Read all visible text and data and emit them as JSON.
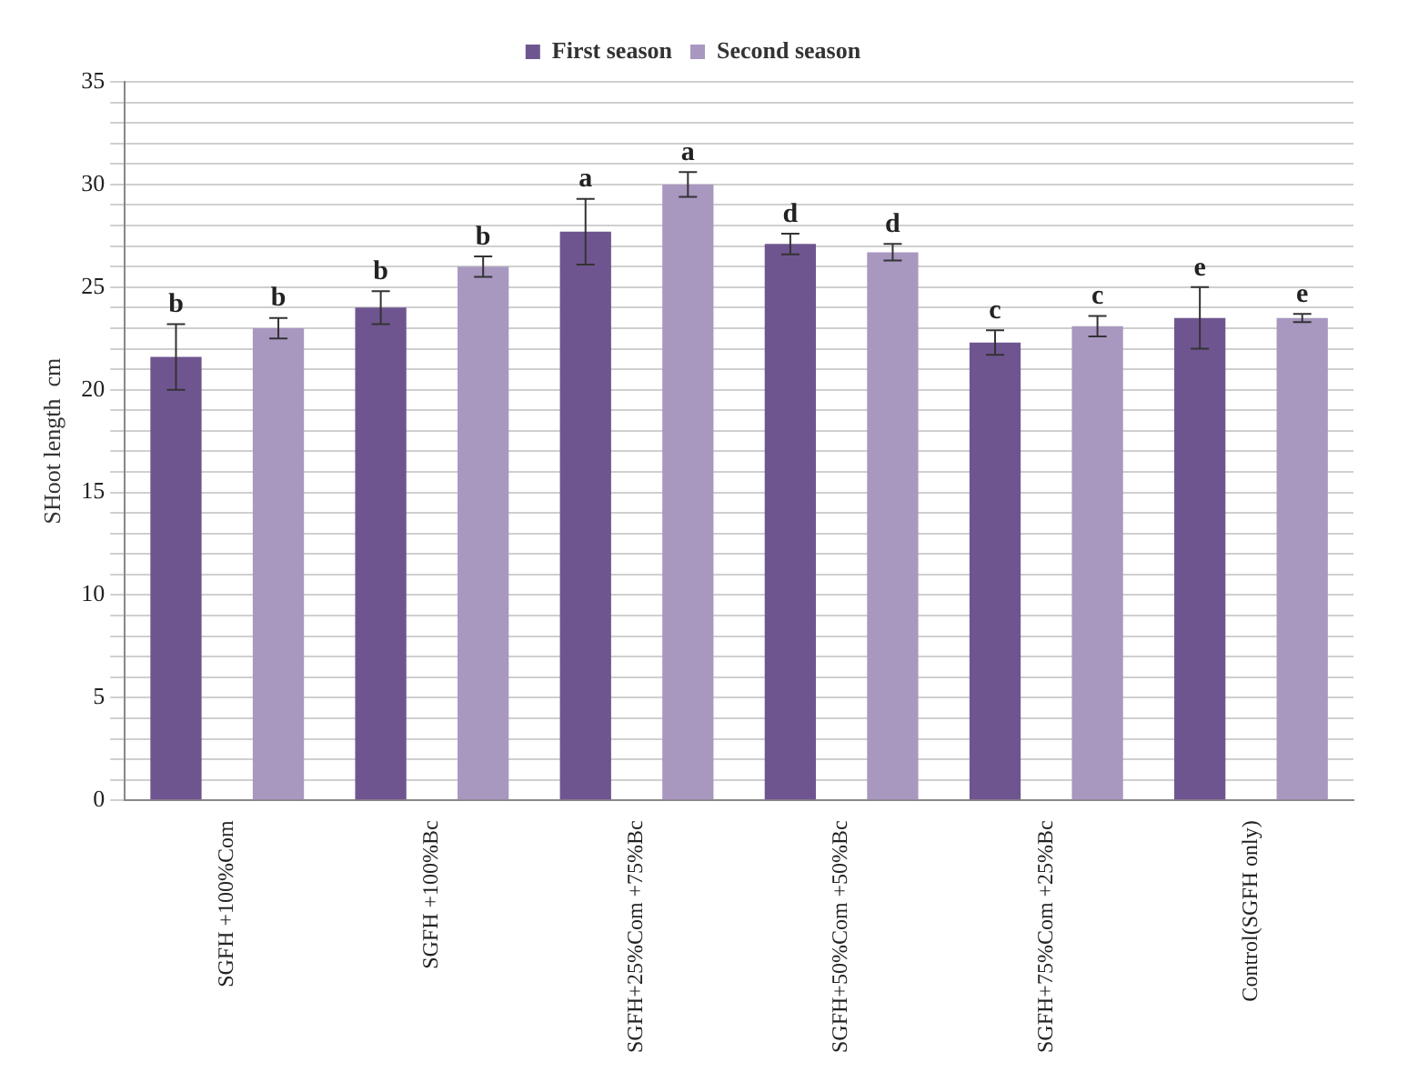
{
  "chart_data": {
    "type": "bar",
    "ylabel": "SHoot length  cm",
    "categories": [
      "SGFH +100%Com",
      "SGFH +100%Bc",
      "SGFH+25%Com +75%Bc",
      "SGFH+50%Com +50%Bc",
      "SGFH+75%Com +25%Bc",
      "Control(SGFH only)"
    ],
    "series": [
      {
        "name": "First season",
        "color": "#6f5590",
        "values": [
          21.6,
          24.0,
          27.7,
          27.1,
          22.3,
          23.5
        ],
        "errors": [
          1.6,
          0.8,
          1.6,
          0.5,
          0.6,
          1.5
        ],
        "value_labels": [
          "b",
          "b",
          "a",
          "d",
          "c",
          "e"
        ]
      },
      {
        "name": "Second season",
        "color": "#a898c0",
        "values": [
          23.0,
          26.0,
          30.0,
          26.7,
          23.1,
          23.5
        ],
        "errors": [
          0.5,
          0.5,
          0.6,
          0.4,
          0.5,
          0.2
        ],
        "value_labels": [
          "b",
          "b",
          "a",
          "d",
          "c",
          "e"
        ]
      }
    ],
    "ylim": [
      0,
      35
    ],
    "yticks": [
      0,
      {
        "value": 1,
        "label": null
      },
      {
        "value": 2,
        "label": null
      },
      {
        "value": 3,
        "label": null
      },
      {
        "value": 4,
        "label": null
      },
      5,
      {
        "value": 6,
        "label": null
      },
      {
        "value": 7,
        "label": null
      },
      {
        "value": 8,
        "label": null
      },
      {
        "value": 9,
        "label": null
      },
      10,
      {
        "value": 11,
        "label": null
      },
      {
        "value": 12,
        "label": null
      },
      {
        "value": 13,
        "label": null
      },
      {
        "value": 14,
        "label": null
      },
      15,
      {
        "value": 16,
        "label": null
      },
      {
        "value": 17,
        "label": null
      },
      {
        "value": 18,
        "label": null
      },
      {
        "value": 19,
        "label": null
      },
      20,
      {
        "value": 21,
        "label": null
      },
      {
        "value": 22,
        "label": null
      },
      {
        "value": 23,
        "label": null
      },
      {
        "value": 24,
        "label": null
      },
      25,
      {
        "value": 26,
        "label": null
      },
      {
        "value": 27,
        "label": null
      },
      {
        "value": 28,
        "label": null
      },
      {
        "value": 29,
        "label": null
      },
      30,
      {
        "value": 31,
        "label": null
      },
      {
        "value": 32,
        "label": null
      },
      {
        "value": 33,
        "label": null
      },
      {
        "value": 34,
        "label": null
      },
      35
    ],
    "grid": "y",
    "legend": "top"
  }
}
